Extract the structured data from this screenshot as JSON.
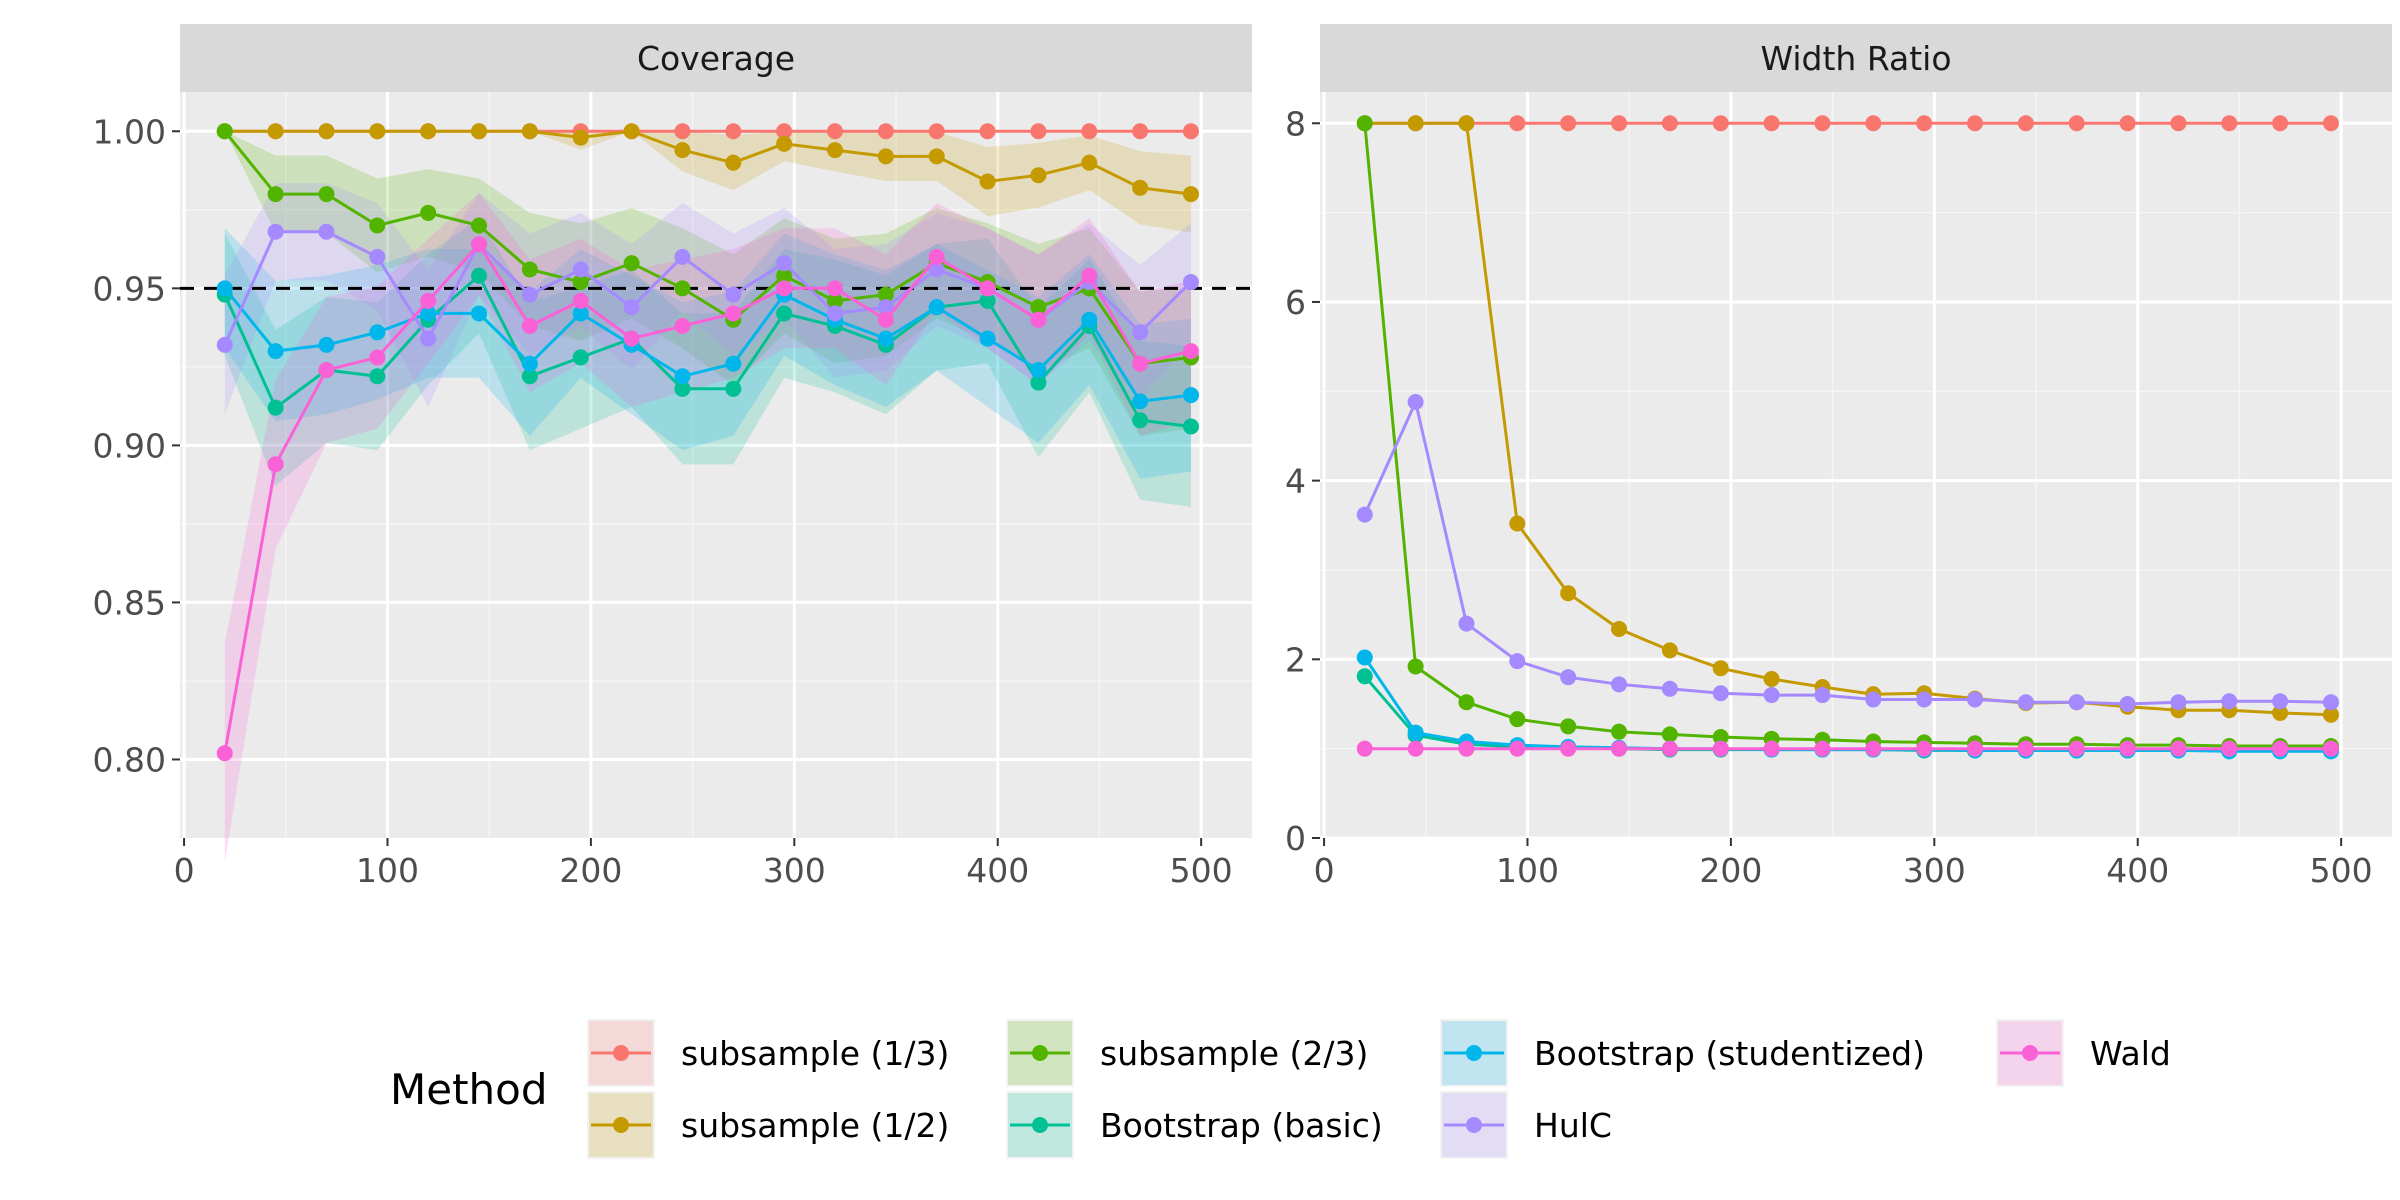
{
  "legend": {
    "title": "Method"
  },
  "methods": [
    {
      "name": "subsample (1/3)",
      "color": "#F8766D"
    },
    {
      "name": "subsample (1/2)",
      "color": "#C49A00"
    },
    {
      "name": "subsample (2/3)",
      "color": "#53B400"
    },
    {
      "name": "Bootstrap (basic)",
      "color": "#00C094"
    },
    {
      "name": "Bootstrap (studentized)",
      "color": "#00B6EB"
    },
    {
      "name": "HulC",
      "color": "#A58AFF"
    },
    {
      "name": "Wald",
      "color": "#FB61D7"
    }
  ],
  "chart_data": [
    {
      "type": "line",
      "title": "Coverage",
      "x": [
        20,
        45,
        70,
        95,
        120,
        145,
        170,
        195,
        220,
        245,
        270,
        295,
        320,
        345,
        370,
        395,
        420,
        445,
        470,
        495
      ],
      "xlim": [
        -2,
        525
      ],
      "ylim": [
        0.775,
        1.0125
      ],
      "x_ticks": [
        0,
        100,
        200,
        300,
        400,
        500
      ],
      "y_ticks": [
        0.8,
        0.85,
        0.9,
        0.95,
        1.0
      ],
      "y_tick_labels": [
        "0.80",
        "0.85",
        "0.90",
        "0.95",
        "1.00"
      ],
      "reference_line": 0.95,
      "series": [
        {
          "name": "subsample (1/3)",
          "values": [
            1.0,
            1.0,
            1.0,
            1.0,
            1.0,
            1.0,
            1.0,
            1.0,
            1.0,
            1.0,
            1.0,
            1.0,
            1.0,
            1.0,
            1.0,
            1.0,
            1.0,
            1.0,
            1.0,
            1.0
          ]
        },
        {
          "name": "subsample (1/2)",
          "values": [
            1.0,
            1.0,
            1.0,
            1.0,
            1.0,
            1.0,
            1.0,
            0.998,
            1.0,
            0.994,
            0.99,
            0.996,
            0.994,
            0.992,
            0.992,
            0.984,
            0.986,
            0.99,
            0.982,
            0.98
          ]
        },
        {
          "name": "subsample (2/3)",
          "values": [
            1.0,
            0.98,
            0.98,
            0.97,
            0.974,
            0.97,
            0.956,
            0.952,
            0.958,
            0.95,
            0.94,
            0.954,
            0.946,
            0.948,
            0.958,
            0.952,
            0.944,
            0.95,
            0.926,
            0.928
          ]
        },
        {
          "name": "Bootstrap (basic)",
          "values": [
            0.948,
            0.912,
            0.924,
            0.922,
            0.94,
            0.954,
            0.922,
            0.928,
            0.934,
            0.918,
            0.918,
            0.942,
            0.938,
            0.932,
            0.944,
            0.946,
            0.92,
            0.938,
            0.908,
            0.906
          ]
        },
        {
          "name": "Bootstrap (studentized)",
          "values": [
            0.95,
            0.93,
            0.932,
            0.936,
            0.942,
            0.942,
            0.926,
            0.942,
            0.932,
            0.922,
            0.926,
            0.948,
            0.94,
            0.934,
            0.944,
            0.934,
            0.924,
            0.94,
            0.914,
            0.916
          ]
        },
        {
          "name": "HulC",
          "values": [
            0.932,
            0.968,
            0.968,
            0.96,
            0.934,
            0.964,
            0.948,
            0.956,
            0.944,
            0.96,
            0.948,
            0.958,
            0.942,
            0.944,
            0.956,
            0.95,
            0.94,
            0.952,
            0.936,
            0.952
          ]
        },
        {
          "name": "Wald",
          "values": [
            0.802,
            0.894,
            0.924,
            0.928,
            0.946,
            0.964,
            0.938,
            0.946,
            0.934,
            0.938,
            0.942,
            0.95,
            0.95,
            0.94,
            0.96,
            0.95,
            0.94,
            0.954,
            0.926,
            0.93
          ]
        }
      ]
    },
    {
      "type": "line",
      "title": "Width Ratio",
      "x": [
        20,
        45,
        70,
        95,
        120,
        145,
        170,
        195,
        220,
        245,
        270,
        295,
        320,
        345,
        370,
        395,
        420,
        445,
        470,
        495
      ],
      "xlim": [
        -2,
        525
      ],
      "ylim": [
        0,
        8.35
      ],
      "x_ticks": [
        0,
        100,
        200,
        300,
        400,
        500
      ],
      "y_ticks": [
        0,
        2,
        4,
        6,
        8
      ],
      "y_tick_labels": [
        "0",
        "2",
        "4",
        "6",
        "8"
      ],
      "series": [
        {
          "name": "subsample (1/3)",
          "values": [
            8.0,
            8.0,
            8.0,
            8.0,
            8.0,
            8.0,
            8.0,
            8.0,
            8.0,
            8.0,
            8.0,
            8.0,
            8.0,
            8.0,
            8.0,
            8.0,
            8.0,
            8.0,
            8.0,
            8.0
          ]
        },
        {
          "name": "subsample (1/2)",
          "values": [
            8.0,
            8.0,
            8.0,
            3.52,
            2.74,
            2.34,
            2.1,
            1.9,
            1.78,
            1.69,
            1.61,
            1.62,
            1.56,
            1.51,
            1.52,
            1.47,
            1.43,
            1.43,
            1.4,
            1.38
          ]
        },
        {
          "name": "subsample (2/3)",
          "values": [
            8.0,
            1.92,
            1.52,
            1.33,
            1.25,
            1.19,
            1.16,
            1.13,
            1.11,
            1.1,
            1.08,
            1.07,
            1.06,
            1.05,
            1.05,
            1.04,
            1.04,
            1.03,
            1.03,
            1.03
          ]
        },
        {
          "name": "Bootstrap (basic)",
          "values": [
            1.81,
            1.15,
            1.05,
            1.02,
            1.01,
            1.0,
            0.99,
            0.99,
            0.99,
            0.99,
            0.99,
            0.98,
            0.98,
            0.98,
            0.98,
            0.98,
            0.98,
            0.98,
            0.98,
            0.98
          ]
        },
        {
          "name": "Bootstrap (studentized)",
          "values": [
            2.02,
            1.18,
            1.08,
            1.04,
            1.02,
            1.01,
            1.0,
            1.0,
            0.99,
            0.99,
            0.99,
            0.99,
            0.98,
            0.98,
            0.98,
            0.98,
            0.98,
            0.97,
            0.97,
            0.97
          ]
        },
        {
          "name": "HulC",
          "values": [
            3.62,
            4.88,
            2.4,
            1.98,
            1.8,
            1.72,
            1.67,
            1.62,
            1.6,
            1.6,
            1.55,
            1.55,
            1.55,
            1.52,
            1.52,
            1.5,
            1.52,
            1.53,
            1.53,
            1.52
          ]
        },
        {
          "name": "Wald",
          "values": [
            1.0,
            1.0,
            1.0,
            1.0,
            1.0,
            1.0,
            1.0,
            1.0,
            1.0,
            1.0,
            1.0,
            1.0,
            1.0,
            1.0,
            1.0,
            1.0,
            1.0,
            1.0,
            1.0,
            1.0
          ]
        }
      ]
    }
  ]
}
